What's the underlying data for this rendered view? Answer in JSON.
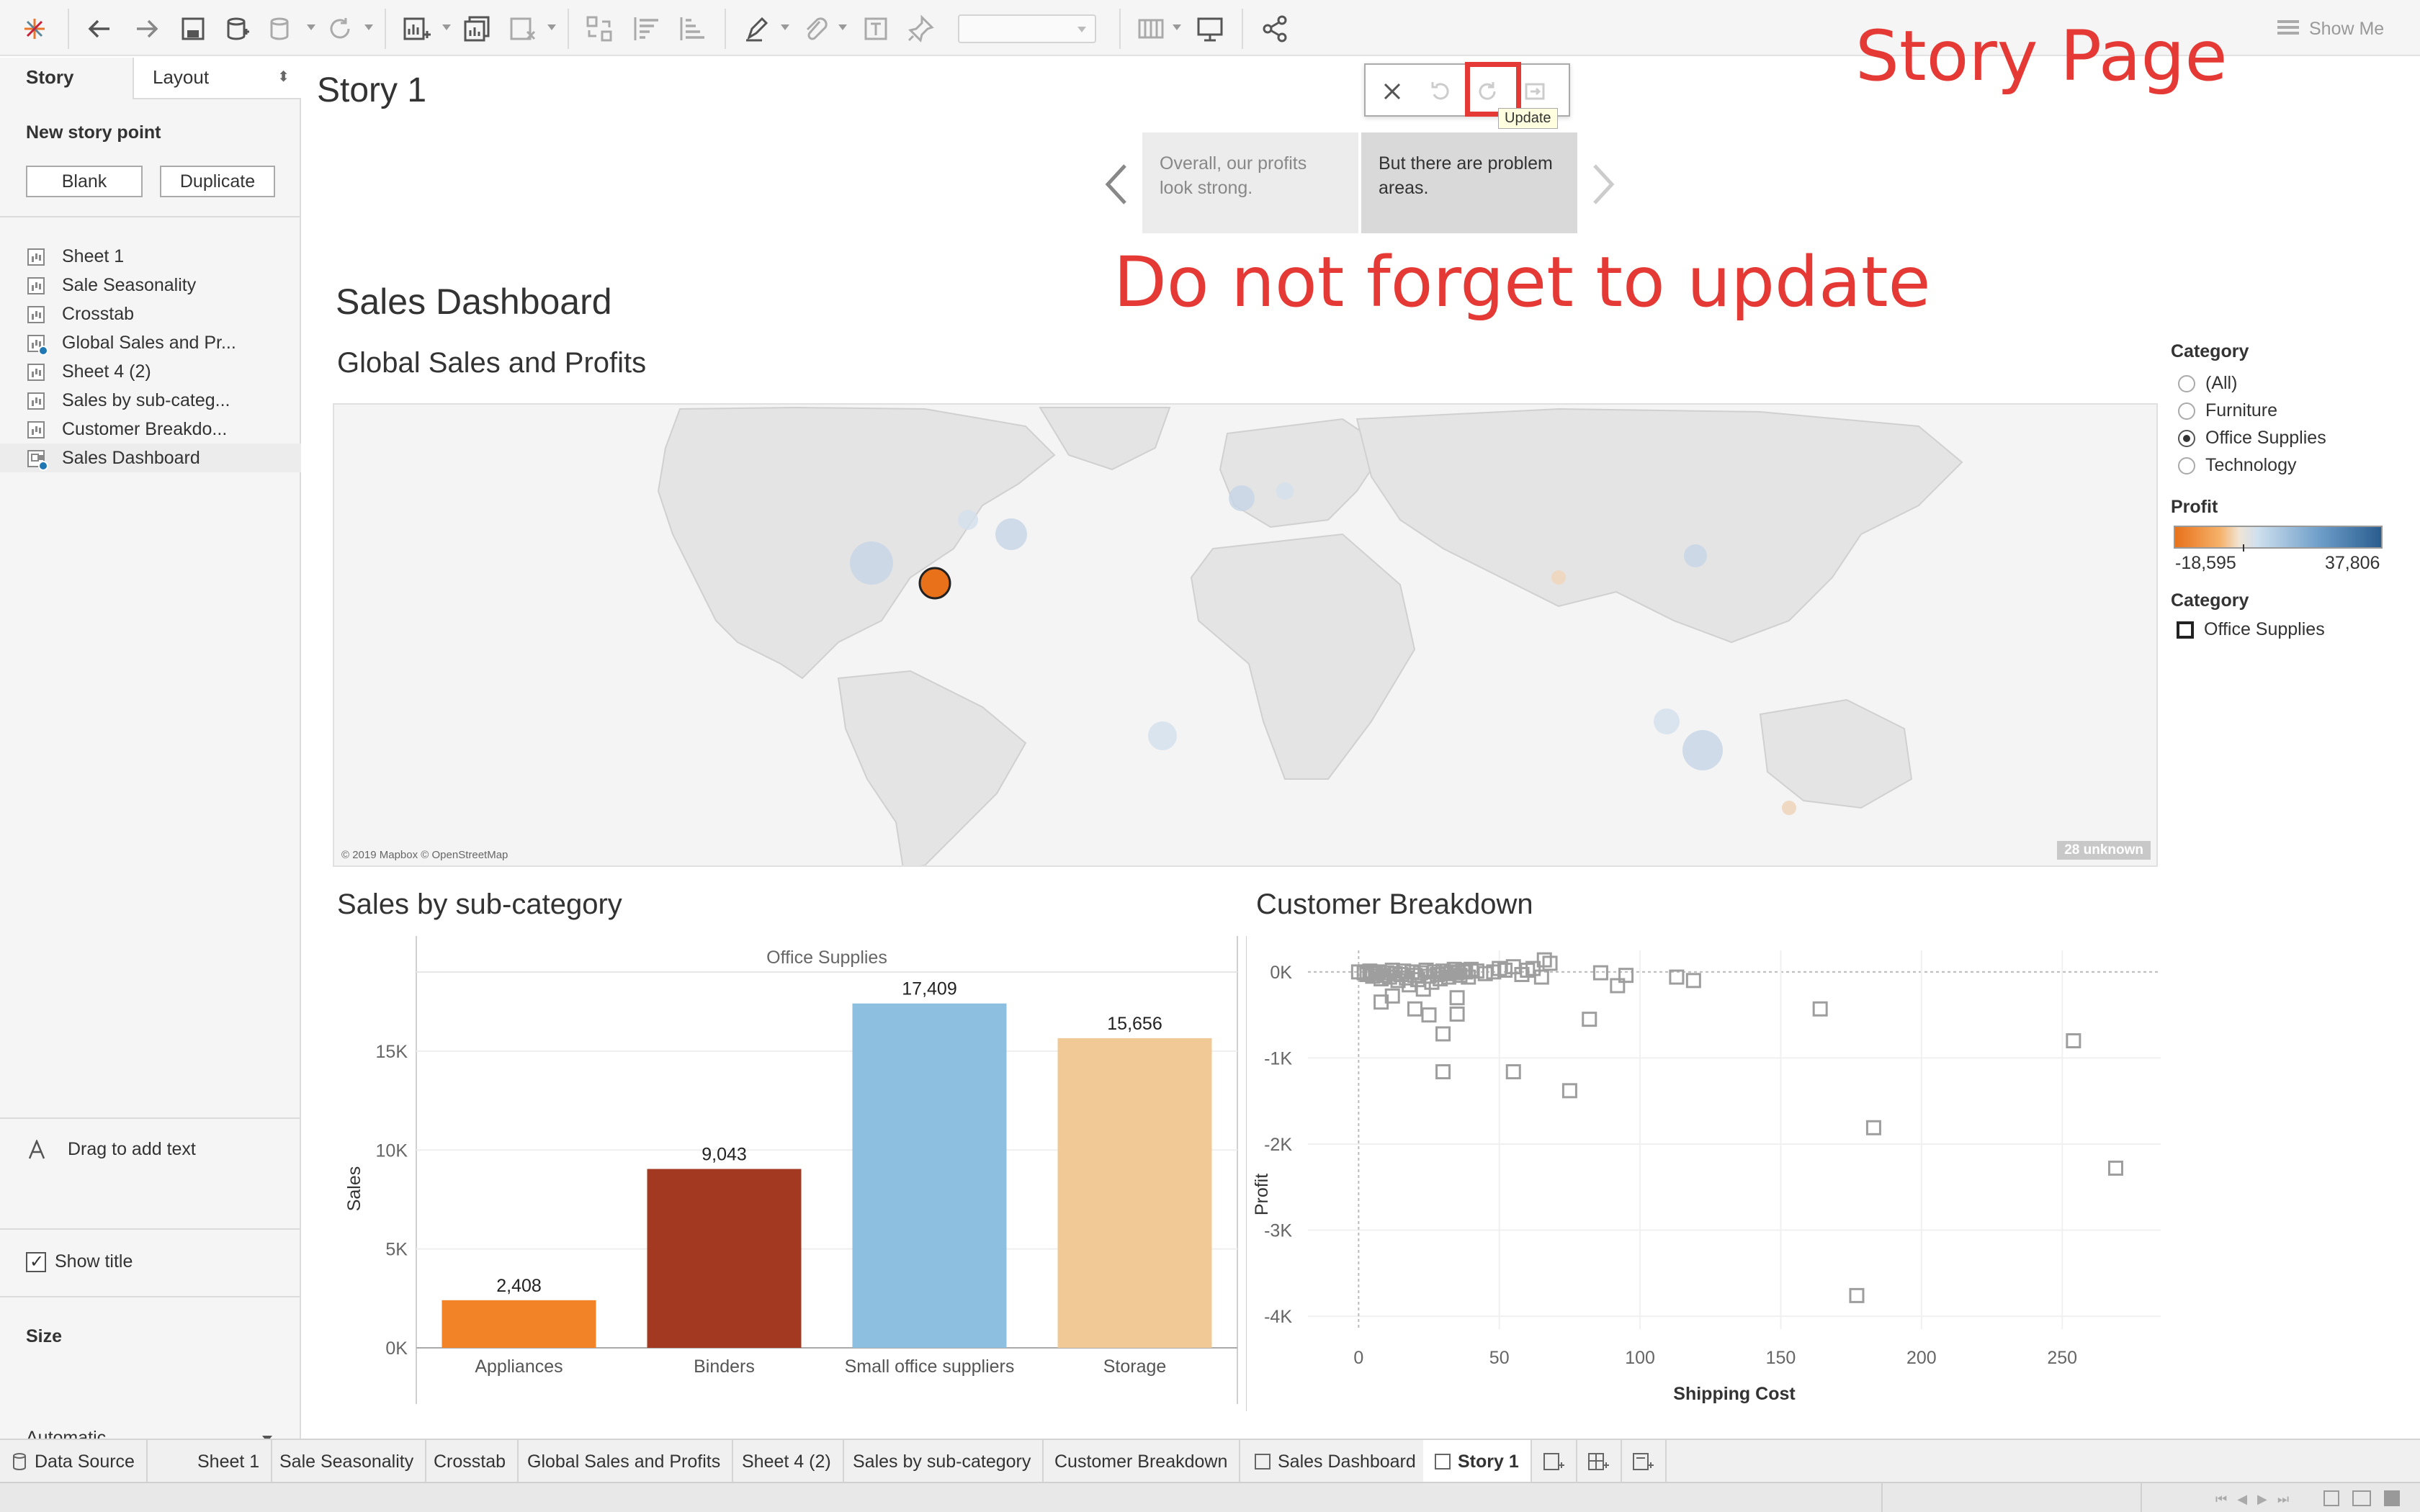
{
  "toolbar": {
    "show_me_label": "Show Me"
  },
  "left_panel": {
    "tab_story": "Story",
    "tab_layout": "Layout",
    "new_story_point": "New story point",
    "blank_button": "Blank",
    "duplicate_button": "Duplicate",
    "sheets": [
      {
        "label": "Sheet 1"
      },
      {
        "label": "Sale Seasonality"
      },
      {
        "label": "Crosstab"
      },
      {
        "label": "Global Sales and Pr..."
      },
      {
        "label": "Sheet 4 (2)"
      },
      {
        "label": "Sales by sub-categ..."
      },
      {
        "label": "Customer Breakdo..."
      },
      {
        "label": "Sales Dashboard"
      }
    ],
    "drag_text": "Drag to add text",
    "show_title": "Show title",
    "size_heading": "Size",
    "size_value": "Automatic"
  },
  "story": {
    "title": "Story 1",
    "update_tooltip": "Update",
    "points": [
      {
        "text": "Overall, our profits look strong."
      },
      {
        "text": "But there are problem areas."
      }
    ]
  },
  "annotations": {
    "story_page": "Story Page",
    "do_not_forget": "Do not forget to update"
  },
  "dashboard": {
    "title": "Sales Dashboard",
    "map_title": "Global Sales and Profits",
    "map_credit": "© 2019 Mapbox © OpenStreetMap",
    "map_unknown": "28 unknown",
    "bar_title": "Sales by sub-category",
    "scatter_title": "Customer Breakdown"
  },
  "legends": {
    "category_title": "Category",
    "category_options": [
      "(All)",
      "Furniture",
      "Office Supplies",
      "Technology"
    ],
    "category_selected": "Office Supplies",
    "profit_title": "Profit",
    "profit_min": "-18,595",
    "profit_max": "37,806",
    "category_title_2": "Category",
    "category_item": "Office Supplies"
  },
  "colors": {
    "accent_red": "#e53935",
    "appliances": "#f28427",
    "binders": "#a23920",
    "small_office": "#8cbfe0",
    "storage": "#f0c997",
    "scatter_marker": "#9e9e9e"
  },
  "chart_data": [
    {
      "type": "bar",
      "title": "Sales by sub-category",
      "header": "Office Supplies",
      "ylabel": "Sales",
      "xlabel": "",
      "categories": [
        "Appliances",
        "Binders",
        "Small office suppliers",
        "Storage"
      ],
      "values": [
        2408,
        9043,
        17409,
        15656
      ],
      "value_labels": [
        "2,408",
        "9,043",
        "17,409",
        "15,656"
      ],
      "yticks": [
        0,
        5000,
        10000,
        15000
      ],
      "ytick_labels": [
        "0K",
        "5K",
        "10K",
        "15K"
      ],
      "ylim": [
        0,
        19000
      ]
    },
    {
      "type": "scatter",
      "title": "Customer Breakdown",
      "xlabel": "Shipping Cost",
      "ylabel": "Profit",
      "xlim": [
        -18,
        285
      ],
      "ylim": [
        -4150,
        250
      ],
      "xticks": [
        0,
        50,
        100,
        150,
        200,
        250
      ],
      "yticks": [
        0,
        -1000,
        -2000,
        -3000,
        -4000
      ],
      "ytick_labels": [
        "0K",
        "-1K",
        "-2K",
        "-3K",
        "-4K"
      ],
      "points": [
        [
          0,
          0
        ],
        [
          2,
          -10
        ],
        [
          3,
          -30
        ],
        [
          4,
          10
        ],
        [
          5,
          -50
        ],
        [
          6,
          -20
        ],
        [
          7,
          0
        ],
        [
          8,
          -80
        ],
        [
          9,
          -40
        ],
        [
          10,
          -10
        ],
        [
          11,
          -60
        ],
        [
          12,
          20
        ],
        [
          13,
          -20
        ],
        [
          14,
          -100
        ],
        [
          15,
          -30
        ],
        [
          16,
          10
        ],
        [
          17,
          -70
        ],
        [
          18,
          -150
        ],
        [
          19,
          0
        ],
        [
          20,
          -40
        ],
        [
          21,
          -90
        ],
        [
          22,
          -10
        ],
        [
          23,
          -200
        ],
        [
          24,
          20
        ],
        [
          25,
          -50
        ],
        [
          26,
          -120
        ],
        [
          27,
          0
        ],
        [
          28,
          -30
        ],
        [
          29,
          -80
        ],
        [
          30,
          10
        ],
        [
          31,
          -20
        ],
        [
          32,
          -60
        ],
        [
          33,
          0
        ],
        [
          34,
          30
        ],
        [
          35,
          -10
        ],
        [
          36,
          -40
        ],
        [
          37,
          20
        ],
        [
          38,
          0
        ],
        [
          39,
          -60
        ],
        [
          40,
          30
        ],
        [
          42,
          10
        ],
        [
          45,
          -20
        ],
        [
          48,
          0
        ],
        [
          50,
          40
        ],
        [
          52,
          20
        ],
        [
          55,
          60
        ],
        [
          58,
          -30
        ],
        [
          60,
          20
        ],
        [
          62,
          40
        ],
        [
          65,
          -60
        ],
        [
          68,
          100
        ],
        [
          66,
          140
        ],
        [
          8,
          -350
        ],
        [
          12,
          -280
        ],
        [
          20,
          -430
        ],
        [
          25,
          -500
        ],
        [
          30,
          -720
        ],
        [
          30,
          -1160
        ],
        [
          35,
          -300
        ],
        [
          35,
          -490
        ],
        [
          55,
          -1160
        ],
        [
          75,
          -1380
        ],
        [
          82,
          -550
        ],
        [
          86,
          -10
        ],
        [
          92,
          -160
        ],
        [
          95,
          -40
        ],
        [
          113,
          -60
        ],
        [
          119,
          -100
        ],
        [
          164,
          -430
        ],
        [
          183,
          -1810
        ],
        [
          177,
          -3760
        ],
        [
          254,
          -800
        ],
        [
          269,
          -2280
        ]
      ]
    }
  ],
  "tabs": [
    {
      "label": "Data Source"
    },
    {
      "label": "Sheet 1"
    },
    {
      "label": "Sale Seasonality"
    },
    {
      "label": "Crosstab"
    },
    {
      "label": "Global Sales and Profits"
    },
    {
      "label": "Sheet 4 (2)"
    },
    {
      "label": "Sales by sub-category"
    },
    {
      "label": "Customer Breakdown"
    },
    {
      "label": "Sales Dashboard"
    },
    {
      "label": "Story 1"
    }
  ]
}
